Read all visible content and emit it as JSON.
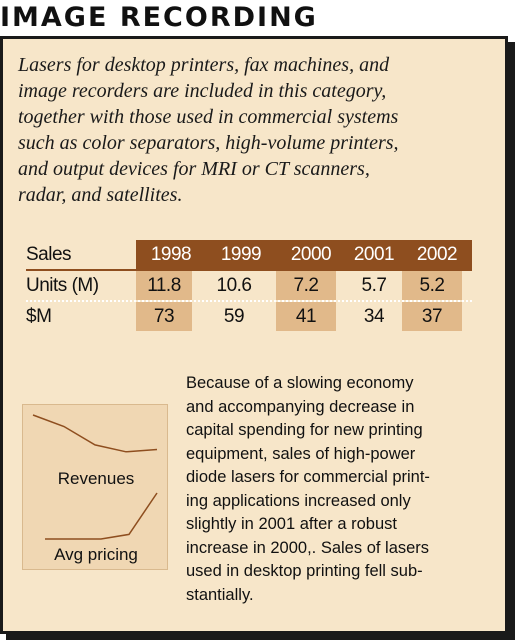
{
  "title": "IMAGE RECORDING",
  "intro_lines": [
    "Lasers for desktop printers, fax machines, and",
    "image recorders are included in this category,",
    "together with those used in commercial systems",
    "such as color separators, high-volume printers,",
    "and output devices for MRI or CT scanners,",
    "radar, and satellites."
  ],
  "table": {
    "header_label": "Sales",
    "years": [
      "1998",
      "1999",
      "2000",
      "2001",
      "2002"
    ],
    "rows": [
      {
        "label": "Units (M)",
        "values": [
          "11.8",
          "10.6",
          "7.2",
          "5.7",
          "5.2"
        ]
      },
      {
        "label": "$M",
        "values": [
          "73",
          "59",
          "41",
          "34",
          "37"
        ]
      }
    ]
  },
  "sparklines": {
    "revenues_label": "Revenues",
    "pricing_label": "Avg pricing",
    "revenues_trend": [
      1.0,
      0.75,
      0.35,
      0.2,
      0.25
    ],
    "pricing_trend": [
      0.0,
      0.0,
      0.0,
      0.1,
      1.0
    ]
  },
  "body_lines": [
    "Because of a slowing economy",
    "and accompanying decrease in",
    "capital spending for new printing",
    "equipment, sales of high-power",
    "diode lasers for commercial print-",
    "ing applications increased only",
    "slightly in 2001 after a robust",
    "increase in 2000,. Sales of lasers",
    "used in desktop printing fell sub-",
    "stantially."
  ]
}
